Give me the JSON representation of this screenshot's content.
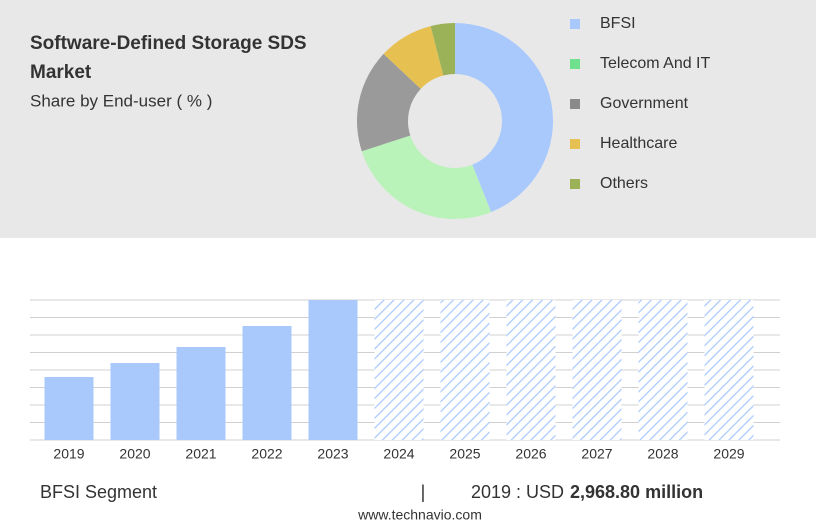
{
  "chart_data": [
    {
      "type": "pie",
      "title": "Software-Defined Storage SDS Market",
      "subtitle": "Share by End-user ( % )",
      "categories": [
        "BFSI",
        "Telecom And IT",
        "Government",
        "Healthcare",
        "Others"
      ],
      "values": [
        44,
        26,
        17,
        9,
        4
      ],
      "colors": [
        "#a9c9fd",
        "#b9f3b9",
        "#9a9a9a",
        "#e6c152",
        "#9cb258"
      ],
      "legend_colors": [
        "#a9c9fd",
        "#6fe08c",
        "#8a8a8a",
        "#e6c152",
        "#9cb258"
      ],
      "donut": true
    },
    {
      "type": "bar",
      "categories": [
        "2019",
        "2020",
        "2021",
        "2022",
        "2023",
        "2024",
        "2025",
        "2026",
        "2027",
        "2028",
        "2029"
      ],
      "values": [
        2968.8,
        3628,
        4382,
        5372,
        6597,
        null,
        null,
        null,
        null,
        null,
        null
      ],
      "value_labels": [
        "2,968.80 million",
        null,
        null,
        null,
        null,
        null,
        null,
        null,
        null,
        null,
        null
      ],
      "color": "#a9c9fd",
      "forecast_color": "#a9c9fd",
      "segment": "BFSI Segment",
      "highlight_prefix": "2019 : USD"
    }
  ],
  "footer": {
    "separator": "|",
    "source": "www.technavio.com"
  }
}
